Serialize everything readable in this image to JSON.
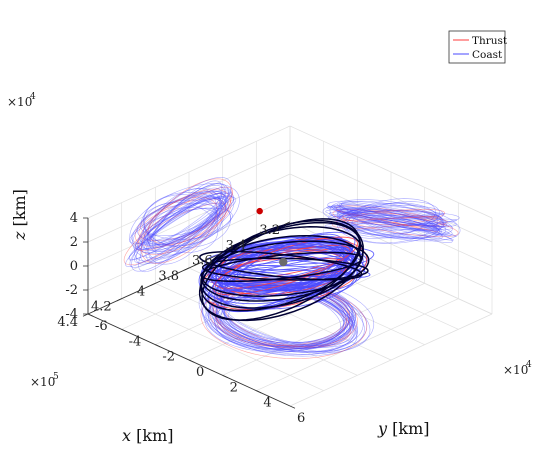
{
  "chart_data": {
    "type": "line",
    "projection": "3d",
    "title": "",
    "legend": {
      "placement": "top-right",
      "entries": [
        {
          "label": "Thrust",
          "color": "#ff3b3b"
        },
        {
          "label": "Coast",
          "color": "#4a4aff"
        }
      ]
    },
    "axes": {
      "x": {
        "var": "x",
        "unit": "[km]",
        "exponent": "×10",
        "power": "5",
        "ticks": [
          "3.2",
          "3.4",
          "3.6",
          "3.8",
          "4",
          "4.2",
          "4.4"
        ],
        "range": [
          3.2,
          4.4
        ]
      },
      "y": {
        "var": "y",
        "unit": "[km]",
        "exponent": "×10",
        "power": "4",
        "ticks": [
          "-6",
          "-4",
          "-2",
          "0",
          "2",
          "4",
          "6"
        ],
        "range": [
          -6,
          6
        ]
      },
      "z": {
        "var": "z",
        "unit": "[km]",
        "exponent": "×10",
        "power": "4",
        "ticks": [
          "-4",
          "-2",
          "0",
          "2",
          "4"
        ],
        "range": [
          -4,
          4
        ]
      }
    },
    "grid": true,
    "series": [
      {
        "name": "Thrust",
        "color": "#ff3b3b",
        "style": "solid"
      },
      {
        "name": "Coast",
        "color": "#4a4aff",
        "style": "solid"
      },
      {
        "color": "#000033",
        "style": "solid"
      }
    ],
    "markers": [
      {
        "color": "#6b6b6b",
        "shape": "circle"
      },
      {
        "color": "#cc0000",
        "shape": "circle"
      }
    ]
  }
}
